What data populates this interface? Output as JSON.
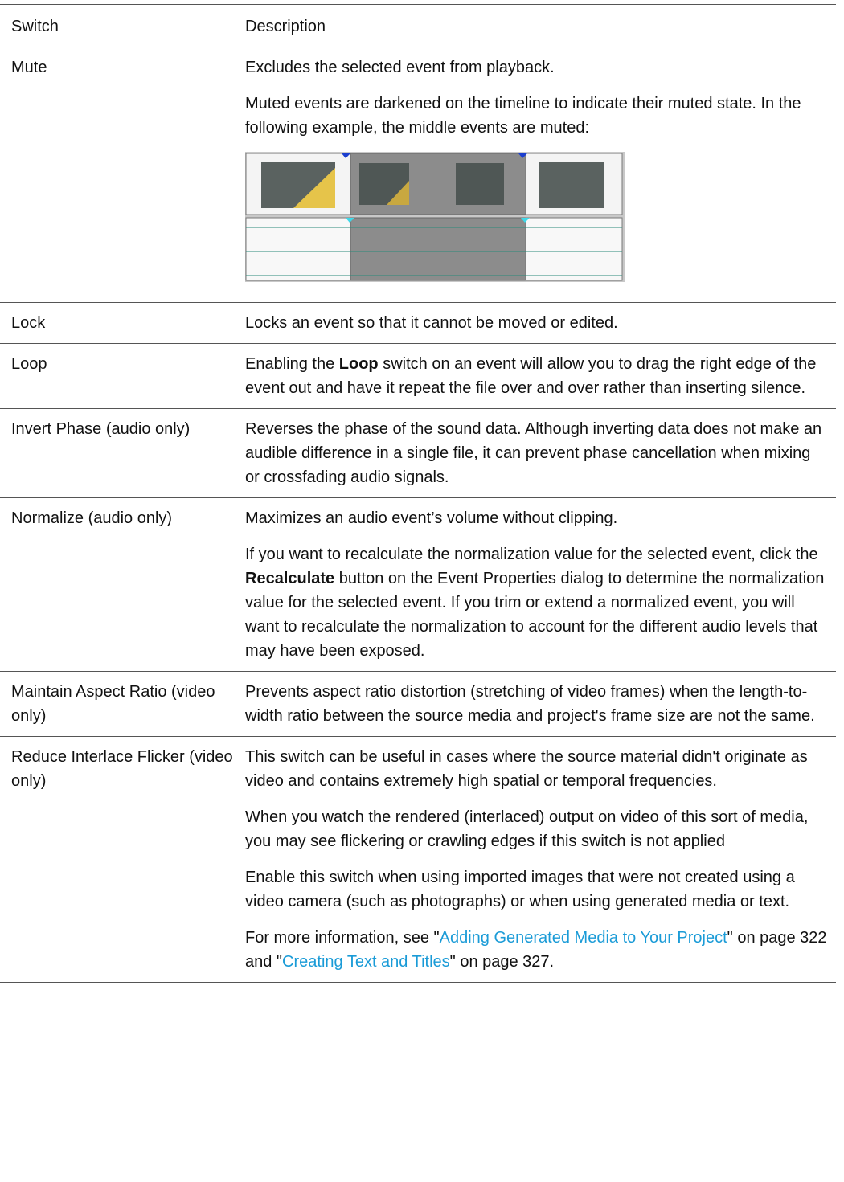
{
  "table": {
    "header": [
      "Switch",
      "Description"
    ],
    "rows": [
      {
        "switch": "Mute",
        "description": [
          [
            {
              "text": "Excludes the selected event from playback."
            }
          ],
          [
            {
              "text": "Muted events are darkened on the timeline to indicate their muted state. In the following example, the middle events are muted:"
            }
          ]
        ]
      },
      {
        "switch": "Lock",
        "description": [
          [
            {
              "text": "Locks an event so that it cannot be moved or edited."
            }
          ]
        ]
      },
      {
        "switch": "Loop",
        "description": [
          [
            {
              "text": "Enabling the "
            },
            {
              "text": "Loop",
              "style": "bold"
            },
            {
              "text": " switch on an event will allow you to drag the right edge of the event out and have it repeat the file over and over rather than inserting silence."
            }
          ]
        ]
      },
      {
        "switch": "Invert Phase (audio only)",
        "description": [
          [
            {
              "text": "Reverses the phase of the sound data. Although inverting data does not make an audible difference in a single file, it can prevent phase cancellation when mixing or crossfading audio signals."
            }
          ]
        ]
      },
      {
        "switch": "Normalize (audio only)",
        "description": [
          [
            {
              "text": "Maximizes an audio event’s volume without clipping."
            }
          ],
          [
            {
              "text": "If you want to recalculate the normalization value for the selected event, click the "
            },
            {
              "text": "Recalculate",
              "style": "bold"
            },
            {
              "text": " button on the Event Properties dialog to determine the normalization value for the selected event. If you trim or extend a normalized event, you will want to recalculate the normalization to account for the different audio levels that may have been exposed."
            }
          ]
        ]
      },
      {
        "switch": "Maintain Aspect Ratio (video only)",
        "description": [
          [
            {
              "text": "Prevents aspect ratio distortion (stretching of video frames) when the length-to-width ratio between the source media and project's frame size are not the same."
            }
          ]
        ]
      },
      {
        "switch": "Reduce Interlace Flicker (video only)",
        "description": [
          [
            {
              "text": "This switch can be useful in cases where the source material didn't originate as video and contains extremely high spatial or temporal frequencies."
            }
          ],
          [
            {
              "text": "When you watch the rendered (interlaced) output on video of this sort of media, you may see flickering or crawling edges if this switch is not applied"
            }
          ],
          [
            {
              "text": "Enable this switch when using imported images that were not created using a video camera (such as photographs) or when using generated media or text."
            }
          ],
          [
            {
              "text": "For more information, see \""
            },
            {
              "text": "Adding Generated Media to Your Project",
              "style": "link"
            },
            {
              "text": "\" on page 322 and \""
            },
            {
              "text": "Creating Text and Titles",
              "style": "link"
            },
            {
              "text": "\" on page 327."
            }
          ]
        ]
      }
    ]
  }
}
